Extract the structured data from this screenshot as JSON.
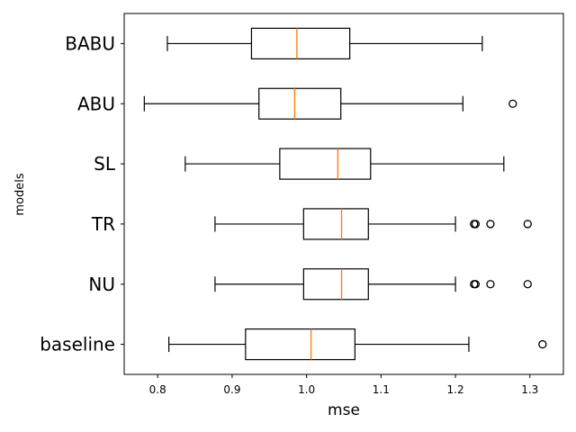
{
  "chart_data": {
    "type": "boxplot",
    "orientation": "horizontal",
    "title": "",
    "xlabel": "mse",
    "ylabel": "models",
    "xlim": [
      0.755,
      1.345
    ],
    "xticks": [
      0.8,
      0.9,
      1.0,
      1.1,
      1.2,
      1.3
    ],
    "xtick_labels": [
      "0.8",
      "0.9",
      "1.0",
      "1.1",
      "1.2",
      "1.3"
    ],
    "grid": false,
    "colors": {
      "box": "#000000",
      "median": "#ff7f0e",
      "outlier": "#000000"
    },
    "categories": [
      "baseline",
      "NU",
      "TR",
      "SL",
      "ABU",
      "BABU"
    ],
    "boxes": [
      {
        "label": "baseline",
        "whislo": 0.815,
        "q1": 0.918,
        "med": 1.006,
        "q3": 1.065,
        "whishi": 1.218,
        "fliers": [
          1.317
        ]
      },
      {
        "label": "NU",
        "whislo": 0.877,
        "q1": 0.996,
        "med": 1.047,
        "q3": 1.083,
        "whishi": 1.2,
        "fliers": [
          1.225,
          1.227,
          1.247,
          1.297
        ]
      },
      {
        "label": "TR",
        "whislo": 0.877,
        "q1": 0.996,
        "med": 1.047,
        "q3": 1.083,
        "whishi": 1.2,
        "fliers": [
          1.225,
          1.227,
          1.247,
          1.297
        ]
      },
      {
        "label": "SL",
        "whislo": 0.837,
        "q1": 0.964,
        "med": 1.042,
        "q3": 1.086,
        "whishi": 1.265,
        "fliers": []
      },
      {
        "label": "ABU",
        "whislo": 0.782,
        "q1": 0.936,
        "med": 0.984,
        "q3": 1.046,
        "whishi": 1.21,
        "fliers": [
          1.277
        ]
      },
      {
        "label": "BABU",
        "whislo": 0.813,
        "q1": 0.926,
        "med": 0.987,
        "q3": 1.058,
        "whishi": 1.236,
        "fliers": []
      }
    ]
  }
}
